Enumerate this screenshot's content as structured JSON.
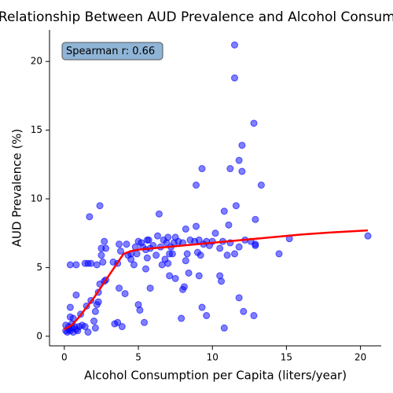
{
  "chart_data": {
    "type": "scatter",
    "title": "Relationship Between AUD Prevalence and Alcohol Consumption",
    "xlabel": "Alcohol Consumption per Capita (liters/year)",
    "ylabel": "AUD Prevalence (%)",
    "annotation": "Spearman r: 0.66",
    "color": "#0000ff",
    "x": [
      0.1,
      0.2,
      0.3,
      0.4,
      0.5,
      0.6,
      0.7,
      0.8,
      0.9,
      1.0,
      1.2,
      1.4,
      0.1,
      0.3,
      0.5,
      0.4,
      0.6,
      0.8,
      0.4,
      1.1,
      1.5,
      1.6,
      2.0,
      2.1,
      2.1,
      1.8,
      2.2,
      2.3,
      2.3,
      2.4,
      2.7,
      2.8,
      2.6,
      2.5,
      2.5,
      2.8,
      2.7,
      2.4,
      1.7,
      0.4,
      0.8,
      1.4,
      1.6,
      1.8,
      2.2,
      3.3,
      3.6,
      3.7,
      3.8,
      4.2,
      4.3,
      4.5,
      4.5,
      4.7,
      4.8,
      4.9,
      5.0,
      5.2,
      5.3,
      5.5,
      5.6,
      5.7,
      5.6,
      5.8,
      6.0,
      6.2,
      6.3,
      6.5,
      6.6,
      6.7,
      6.8,
      6.9,
      7.0,
      7.0,
      7.1,
      7.2,
      7.3,
      7.4,
      7.5,
      7.7,
      8.0,
      8.2,
      8.3,
      8.5,
      8.8,
      9.0,
      9.1,
      9.2,
      9.4,
      9.6,
      9.8,
      10.0,
      10.2,
      10.5,
      10.7,
      11.0,
      11.2,
      11.5,
      11.8,
      12.2,
      12.6,
      12.9,
      14.5,
      15.2,
      20.5,
      3.9,
      3.6,
      3.4,
      3.7,
      4.1,
      5.0,
      5.1,
      5.4,
      5.5,
      5.8,
      6.4,
      7.1,
      7.5,
      7.9,
      8.0,
      8.1,
      8.2,
      8.4,
      8.9,
      8.9,
      9.1,
      9.3,
      9.3,
      9.6,
      10.5,
      10.6,
      10.8,
      10.8,
      11.1,
      11.2,
      11.5,
      11.5,
      11.6,
      11.8,
      11.8,
      12.0,
      12.0,
      12.1,
      12.8,
      12.8,
      12.9,
      13.3,
      12.9
    ],
    "values": [
      0.4,
      0.3,
      0.5,
      0.4,
      0.6,
      0.3,
      0.7,
      0.5,
      0.4,
      0.7,
      0.8,
      0.7,
      0.8,
      0.7,
      0.9,
      1.4,
      1.3,
      3.0,
      2.1,
      1.6,
      2.2,
      0.3,
      1.1,
      1.8,
      0.6,
      2.6,
      2.3,
      2.5,
      3.2,
      3.8,
      4.0,
      4.1,
      5.4,
      5.9,
      6.4,
      6.4,
      6.9,
      9.5,
      8.7,
      5.2,
      5.2,
      5.3,
      5.3,
      5.3,
      5.2,
      5.4,
      5.3,
      6.7,
      6.2,
      6.7,
      5.9,
      5.6,
      6.0,
      5.2,
      6.5,
      6.0,
      6.9,
      6.8,
      6.5,
      6.3,
      7.0,
      7.0,
      5.7,
      6.4,
      6.6,
      5.9,
      7.3,
      6.5,
      5.2,
      7.0,
      5.6,
      6.8,
      7.2,
      5.3,
      6.0,
      6.5,
      6.0,
      6.8,
      7.2,
      6.9,
      6.8,
      5.5,
      6.0,
      7.0,
      6.9,
      6.1,
      7.0,
      5.9,
      6.7,
      6.9,
      6.6,
      6.9,
      7.5,
      6.4,
      6.9,
      5.9,
      6.8,
      6.0,
      6.5,
      7.0,
      6.9,
      6.7,
      6.0,
      7.1,
      7.3,
      0.7,
      1.0,
      0.9,
      3.5,
      3.1,
      2.3,
      1.9,
      1.0,
      4.9,
      3.5,
      8.9,
      4.4,
      4.2,
      1.3,
      3.4,
      3.6,
      7.8,
      4.6,
      8.0,
      11.0,
      4.4,
      12.2,
      2.1,
      1.5,
      4.4,
      4.0,
      9.1,
      0.6,
      8.1,
      12.2,
      21.2,
      18.8,
      9.5,
      12.8,
      2.8,
      13.9,
      12.0,
      1.8,
      1.5,
      15.5,
      8.5,
      11.0,
      6.6
    ],
    "trend": {
      "color": "#ff0000",
      "x": [
        0,
        0.5,
        1,
        2,
        3,
        3.5,
        4,
        4.5,
        5,
        6,
        7,
        8,
        9,
        10,
        12,
        14,
        16,
        18,
        20.5
      ],
      "values": [
        0.5,
        0.8,
        1.4,
        2.8,
        4.4,
        5.2,
        6.0,
        6.2,
        6.3,
        6.4,
        6.5,
        6.6,
        6.7,
        6.8,
        7.0,
        7.2,
        7.4,
        7.55,
        7.7
      ]
    },
    "xlim": [
      -1.0,
      21.4
    ],
    "ylim": [
      -0.7,
      22.3
    ],
    "xticks": [
      0,
      5,
      10,
      15,
      20
    ],
    "yticks": [
      0,
      5,
      10,
      15,
      20
    ],
    "grid": false
  }
}
